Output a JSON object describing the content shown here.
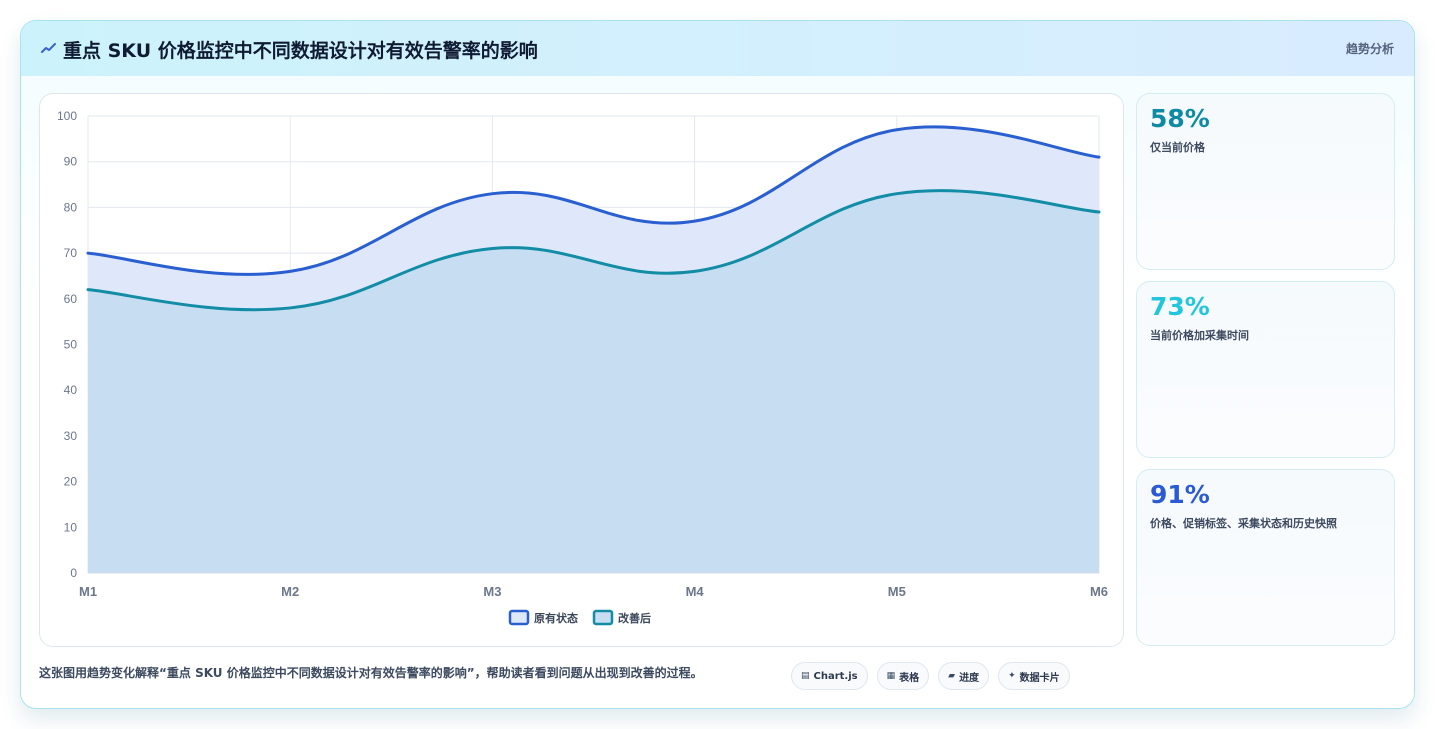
{
  "header": {
    "title": "重点 SKU 价格监控中不同数据设计对有效告警率的影响",
    "tag": "趋势分析"
  },
  "kpis": [
    {
      "value": "58%",
      "label": "仅当前价格",
      "color": "#0f8aa5"
    },
    {
      "value": "73%",
      "label": "当前价格加采集时间",
      "color": "#22c6dc"
    },
    {
      "value": "91%",
      "label": "价格、促销标签、采集状态和历史快照",
      "color": "#2a5bd3"
    }
  ],
  "footer": {
    "text": "这张图用趋势变化解释“重点 SKU 价格监控中不同数据设计对有效告警率的影响”，帮助读者看到问题从出现到改善的过程。"
  },
  "chips": [
    {
      "icon": "chart-icon",
      "glyph": "▤",
      "label": "Chart.js"
    },
    {
      "icon": "table-icon",
      "glyph": "▦",
      "label": "表格"
    },
    {
      "icon": "progress-icon",
      "glyph": "▰",
      "label": "进度"
    },
    {
      "icon": "sparkle-icon",
      "glyph": "✦",
      "label": "数据卡片"
    }
  ],
  "chart_data": {
    "type": "area",
    "categories": [
      "M1",
      "M2",
      "M3",
      "M4",
      "M5",
      "M6"
    ],
    "ylim": [
      0,
      100
    ],
    "yticks": [
      0,
      10,
      20,
      30,
      40,
      50,
      60,
      70,
      80,
      90,
      100
    ],
    "grid": true,
    "legend_position": "bottom",
    "series": [
      {
        "name": "原有状态",
        "values": [
          70,
          66,
          83,
          77,
          97,
          91
        ],
        "color": "#2a5fd1",
        "fill": "#dfe8fa"
      },
      {
        "name": "改善后",
        "values": [
          62,
          58,
          71,
          66,
          83,
          79
        ],
        "color": "#138ca6",
        "fill": "#c6ddf2"
      }
    ]
  }
}
